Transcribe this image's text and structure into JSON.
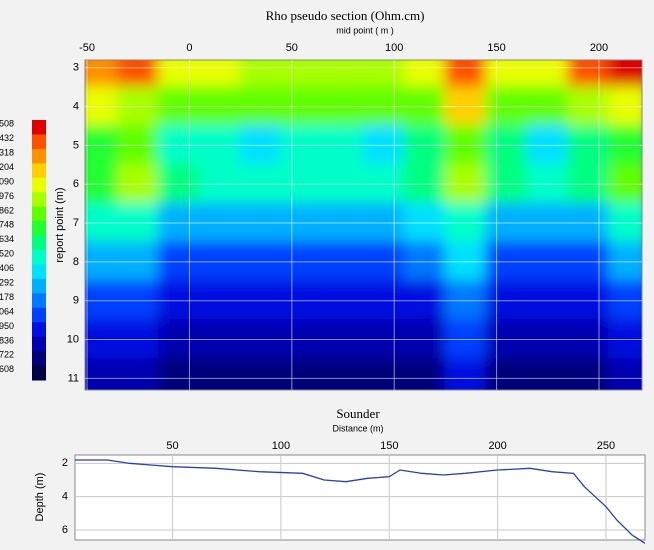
{
  "chart_data": [
    {
      "type": "heatmap",
      "title": "Rho pseudo section (Ohm.cm)",
      "x_label": "mid point ( m )",
      "y_label": "report point (m)",
      "x": [
        -45,
        -25,
        -5,
        15,
        35,
        55,
        75,
        95,
        115,
        135,
        155,
        175,
        195,
        215
      ],
      "y": [
        3,
        4,
        5,
        6,
        7,
        8,
        9,
        10,
        11
      ],
      "z": [
        [
          15,
          16,
          13,
          13,
          12,
          12,
          12,
          12,
          13,
          16,
          13,
          13,
          16,
          17
        ],
        [
          13,
          12,
          11,
          11,
          11,
          11,
          11,
          11,
          11,
          14,
          11,
          11,
          12,
          13
        ],
        [
          10,
          11,
          8,
          8,
          7,
          8,
          8,
          7,
          9,
          11,
          9,
          7,
          9,
          10
        ],
        [
          10,
          12,
          9,
          8,
          8,
          8,
          8,
          8,
          9,
          12,
          9,
          8,
          9,
          11
        ],
        [
          8,
          8,
          6,
          6,
          6,
          6,
          6,
          6,
          7,
          8,
          6,
          6,
          6,
          8
        ],
        [
          6,
          6,
          4,
          4,
          4,
          4,
          4,
          4,
          5,
          7,
          4,
          4,
          4,
          6
        ],
        [
          4,
          4,
          3,
          3,
          3,
          3,
          3,
          3,
          3,
          5,
          3,
          3,
          3,
          4
        ],
        [
          3,
          3,
          2,
          2,
          2,
          2,
          2,
          2,
          2,
          4,
          2,
          2,
          2,
          3
        ],
        [
          2,
          2,
          1,
          1,
          1,
          1,
          1,
          1,
          1,
          3,
          1,
          1,
          1,
          2
        ]
      ],
      "xlim": [
        -51,
        221
      ],
      "xticks": [
        -50,
        0,
        50,
        100,
        150,
        200
      ],
      "ylim": [
        2.8,
        11.3
      ],
      "yticks": [
        3,
        4,
        5,
        6,
        7,
        8,
        9,
        10,
        11
      ],
      "y_inverted": true,
      "colors": [
        "#000046",
        "#00007a",
        "#0000b0",
        "#0010e0",
        "#0040ff",
        "#0078ff",
        "#00b0ff",
        "#00e0ff",
        "#00ffc8",
        "#00ff80",
        "#20ff30",
        "#60ff00",
        "#a8ff00",
        "#e8ff00",
        "#ffd000",
        "#ff9000",
        "#ff5000",
        "#e00000"
      ],
      "colorbar_ticks": [
        {
          "value": 17,
          "label": "508"
        },
        {
          "value": 16,
          "label": "432"
        },
        {
          "value": 15,
          "label": "318"
        },
        {
          "value": 14,
          "label": "204"
        },
        {
          "value": 13,
          "label": "090"
        },
        {
          "value": 12,
          "label": "976"
        },
        {
          "value": 11,
          "label": "862"
        },
        {
          "value": 10,
          "label": "748"
        },
        {
          "value": 9,
          "label": "634"
        },
        {
          "value": 8,
          "label": "520"
        },
        {
          "value": 7,
          "label": "406"
        },
        {
          "value": 6,
          "label": "292"
        },
        {
          "value": 5,
          "label": "178"
        },
        {
          "value": 4,
          "label": "064"
        },
        {
          "value": 3,
          "label": "950"
        },
        {
          "value": 2,
          "label": "836"
        },
        {
          "value": 1,
          "label": "722"
        },
        {
          "value": 0,
          "label": "608"
        }
      ],
      "grid": true
    },
    {
      "type": "line",
      "title": "Sounder",
      "x_label": "Distance (m)",
      "y_label": "Depth (m)",
      "x": [
        5,
        20,
        30,
        40,
        50,
        70,
        90,
        110,
        120,
        130,
        140,
        150,
        155,
        165,
        175,
        185,
        200,
        215,
        225,
        235,
        240,
        245,
        250,
        255,
        262,
        268
      ],
      "values": [
        1.8,
        1.8,
        2.0,
        2.1,
        2.2,
        2.3,
        2.5,
        2.6,
        3.0,
        3.1,
        2.9,
        2.8,
        2.4,
        2.6,
        2.7,
        2.6,
        2.4,
        2.3,
        2.5,
        2.6,
        3.4,
        4.0,
        4.6,
        5.4,
        6.3,
        6.8
      ],
      "color": "#2b3fb0",
      "xlim": [
        5,
        268
      ],
      "xticks": [
        50,
        100,
        150,
        200,
        250
      ],
      "ylim": [
        1.5,
        6.6
      ],
      "yticks": [
        2,
        4,
        6
      ],
      "y_inverted": true,
      "grid": true
    }
  ]
}
